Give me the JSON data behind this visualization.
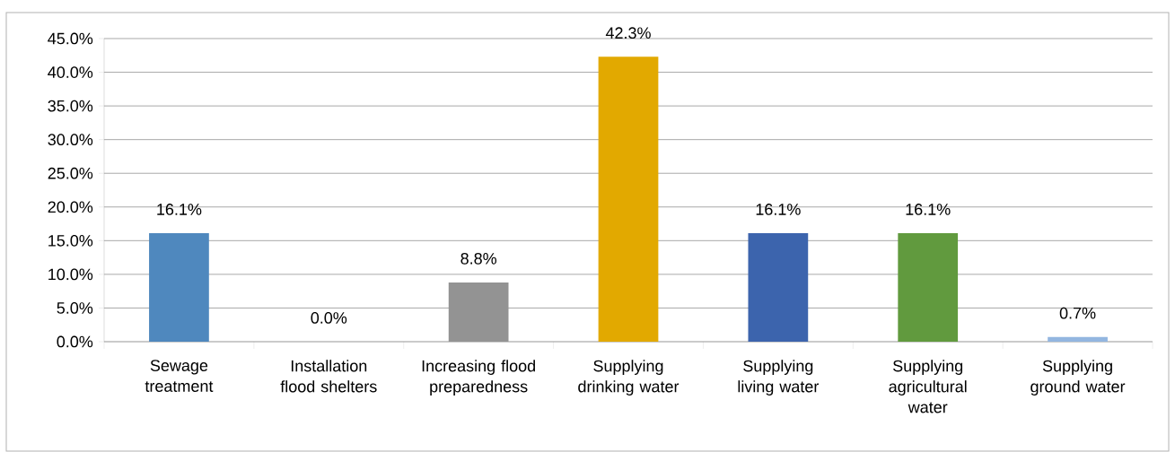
{
  "chart_data": {
    "type": "bar",
    "categories": [
      "Sewage treatment",
      "Installation flood shelters",
      "Increasing flood preparedness",
      "Supplying drinking water",
      "Supplying living water",
      "Supplying agricultural water",
      "Supplying ground water"
    ],
    "values": [
      16.1,
      0.0,
      8.8,
      42.3,
      16.1,
      16.1,
      0.7
    ],
    "colors": [
      "#4f88be",
      "#4f88be",
      "#939393",
      "#e2a900",
      "#3c64ad",
      "#619a3e",
      "#93b6e0"
    ],
    "value_labels": [
      "16.1%",
      "0.0%",
      "8.8%",
      "42.3%",
      "16.1%",
      "16.1%",
      "0.7%"
    ],
    "ylim": [
      0,
      45
    ],
    "yticks": [
      {
        "value": 0,
        "label": "0.0%"
      },
      {
        "value": 5,
        "label": "5.0%"
      },
      {
        "value": 10,
        "label": "10.0%"
      },
      {
        "value": 15,
        "label": "15.0%"
      },
      {
        "value": 20,
        "label": "20.0%"
      },
      {
        "value": 25,
        "label": "25.0%"
      },
      {
        "value": 30,
        "label": "30.0%"
      },
      {
        "value": 35,
        "label": "35.0%"
      },
      {
        "value": 40,
        "label": "40.0%"
      },
      {
        "value": 45,
        "label": "45.0%"
      }
    ],
    "grid": "y"
  }
}
